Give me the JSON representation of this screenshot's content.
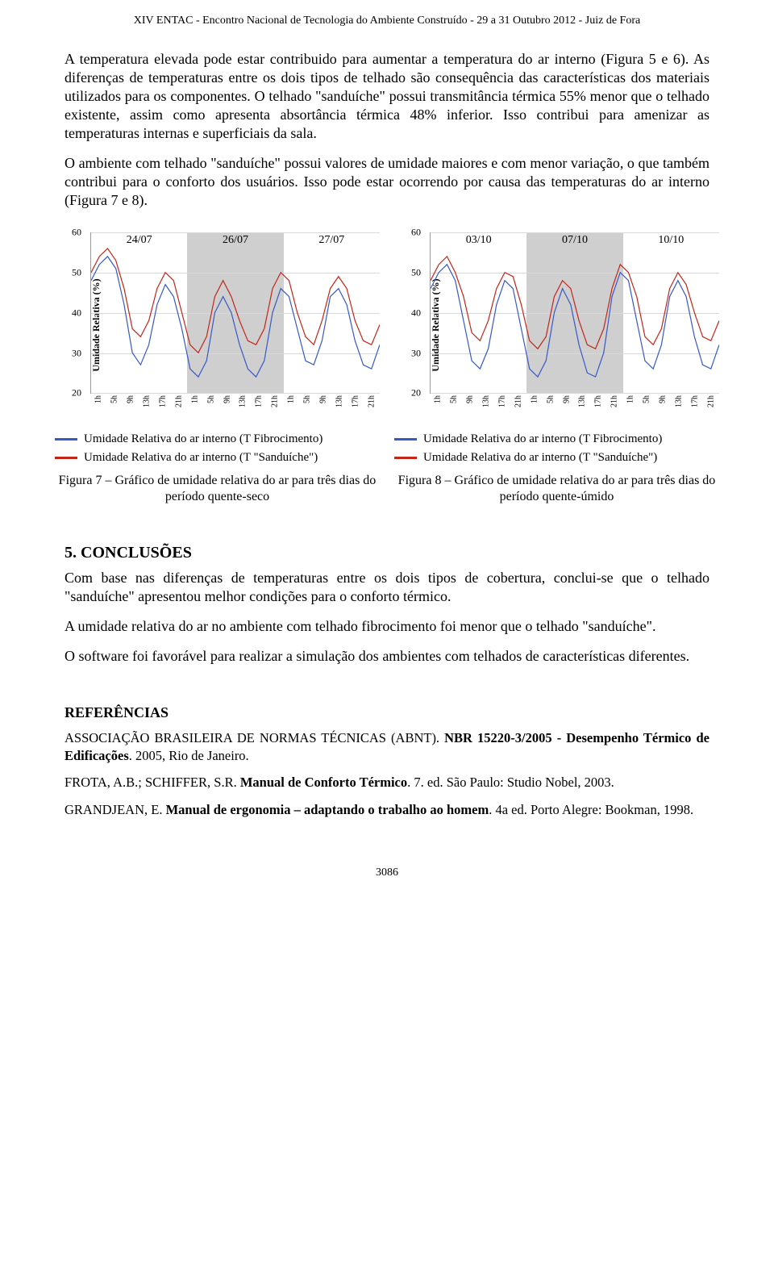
{
  "colors": {
    "series_fib": "#3759c6",
    "series_san": "#c1261a",
    "grid": "#d9d9d9",
    "shade": "#cfcfcf",
    "text": "#000000",
    "bg": "#ffffff",
    "axis": "#999999"
  },
  "header": {
    "running": "XIV ENTAC - Encontro Nacional de Tecnologia do Ambiente Construído - 29 a 31 Outubro 2012 - Juiz de Fora"
  },
  "paragraphs": {
    "p1": "A temperatura elevada pode estar contribuido para aumentar a temperatura do ar interno (Figura 5 e 6). As diferenças de temperaturas entre os dois tipos de telhado são consequência das características dos materiais utilizados para os componentes. O telhado \"sanduíche\" possui transmitância térmica 55% menor que o telhado existente, assim como apresenta absortância térmica 48% inferior. Isso contribui para amenizar as temperaturas internas e superficiais da sala.",
    "p2": "O ambiente com telhado \"sanduíche\" possui valores de umidade maiores e com menor variação, o que também contribui para o conforto dos usuários. Isso pode estar ocorrendo por causa das temperaturas do ar interno (Figura 7 e 8)."
  },
  "charts": {
    "axis": {
      "ylabel": "Umidade Relativa (%)",
      "ylim": [
        20,
        60
      ],
      "yticks": [
        20,
        30,
        40,
        50,
        60
      ],
      "xticks": [
        "1h",
        "5h",
        "9h",
        "13h",
        "17h",
        "21h",
        "1h",
        "5h",
        "9h",
        "13h",
        "17h",
        "21h",
        "1h",
        "5h",
        "9h",
        "13h",
        "17h",
        "21h"
      ]
    },
    "fig7": {
      "day_labels": [
        "24/07",
        "26/07",
        "27/07"
      ],
      "shade_day_index": 1,
      "series": {
        "fibro": [
          48,
          52,
          54,
          51,
          42,
          30,
          27,
          32,
          42,
          47,
          44,
          36,
          26,
          24,
          28,
          40,
          44,
          40,
          32,
          26,
          24,
          28,
          40,
          46,
          44,
          36,
          28,
          27,
          33,
          44,
          46,
          42,
          33,
          27,
          26,
          32
        ],
        "sandu": [
          50,
          54,
          56,
          53,
          46,
          36,
          34,
          38,
          46,
          50,
          48,
          40,
          32,
          30,
          34,
          44,
          48,
          44,
          38,
          33,
          32,
          36,
          46,
          50,
          48,
          40,
          34,
          32,
          38,
          46,
          49,
          46,
          38,
          33,
          32,
          37
        ]
      }
    },
    "fig8": {
      "day_labels": [
        "03/10",
        "07/10",
        "10/10"
      ],
      "shade_day_index": 1,
      "series": {
        "fibro": [
          46,
          50,
          52,
          48,
          38,
          28,
          26,
          31,
          42,
          48,
          46,
          36,
          26,
          24,
          28,
          40,
          46,
          42,
          32,
          25,
          24,
          30,
          44,
          50,
          48,
          38,
          28,
          26,
          32,
          44,
          48,
          44,
          34,
          27,
          26,
          32
        ],
        "sandu": [
          48,
          52,
          54,
          50,
          44,
          35,
          33,
          38,
          46,
          50,
          49,
          42,
          33,
          31,
          34,
          44,
          48,
          46,
          38,
          32,
          31,
          36,
          46,
          52,
          50,
          44,
          34,
          32,
          36,
          46,
          50,
          47,
          40,
          34,
          33,
          38
        ]
      }
    },
    "legend": {
      "fibro": "Umidade Relativa do ar interno (T Fibrocimento)",
      "sandu": "Umidade Relativa do ar interno (T \"Sanduíche\")"
    },
    "captions": {
      "fig7": "Figura 7 – Gráfico de umidade relativa do ar para três dias do período quente-seco",
      "fig8": "Figura 8 – Gráfico de umidade relativa do ar para três dias do período quente-úmido"
    }
  },
  "sections": {
    "conclusoes_h": "5.  CONCLUSÕES",
    "c1": "Com base nas diferenças de temperaturas entre os dois tipos de cobertura, conclui-se que o telhado \"sanduíche\" apresentou melhor condições para o conforto térmico.",
    "c2": "A umidade relativa do ar no ambiente com telhado fibrocimento foi menor que o telhado \"sanduíche\".",
    "c3": "O software foi favorável para realizar a simulação dos ambientes com telhados de características diferentes.",
    "refs_h": "REFERÊNCIAS",
    "r1a": "ASSOCIAÇÃO BRASILEIRA DE NORMAS TÉCNICAS (ABNT). ",
    "r1b": "NBR 15220-3/2005 - Desempenho Térmico de Edificações",
    "r1c": ". 2005, Rio de Janeiro.",
    "r2a": "FROTA, A.B.; SCHIFFER, S.R. ",
    "r2b": "Manual de Conforto Térmico",
    "r2c": ". 7. ed. São Paulo: Studio Nobel, 2003.",
    "r3a": "GRANDJEAN, E. ",
    "r3b": "Manual de ergonomia – adaptando o trabalho ao homem",
    "r3c": ". 4a ed. Porto Alegre: Bookman, 1998."
  },
  "pagenum": "3086"
}
